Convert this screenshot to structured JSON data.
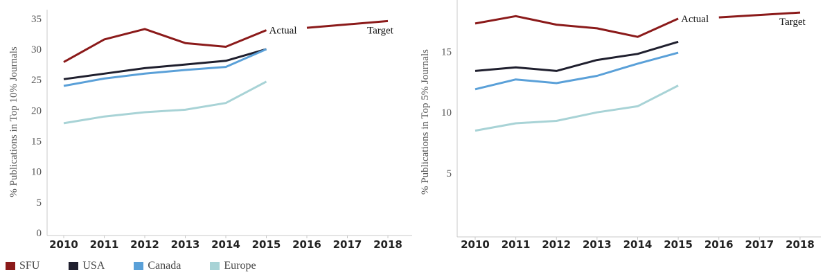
{
  "chart_data": [
    {
      "type": "line",
      "ylabel": "% Publications in Top 10% Journals",
      "ylim": [
        0,
        36
      ],
      "yticks": [
        0,
        5,
        10,
        15,
        20,
        25,
        30,
        35
      ],
      "categories": [
        "2010",
        "2011",
        "2012",
        "2013",
        "2014",
        "2015",
        "2016",
        "2017",
        "2018"
      ],
      "series": [
        {
          "name": "SFU",
          "color": "#8b1a1a",
          "values": [
            27.9,
            31.6,
            33.3,
            31,
            30.4,
            33.1,
            null,
            null,
            null
          ]
        },
        {
          "name": "USA",
          "color": "#1f1f2e",
          "values": [
            25.1,
            26,
            26.9,
            27.5,
            28.1,
            30,
            null,
            null,
            null
          ]
        },
        {
          "name": "Canada",
          "color": "#5aa0d8",
          "values": [
            24,
            25.2,
            26,
            26.6,
            27.1,
            30,
            null,
            null,
            null
          ]
        },
        {
          "name": "Europe",
          "color": "#a8d3d6",
          "values": [
            17.9,
            19,
            19.7,
            20.1,
            21.2,
            24.7,
            null,
            null,
            null
          ]
        }
      ],
      "target": {
        "color": "#8b1a1a",
        "points": [
          [
            "2016",
            33.5
          ],
          [
            "2018",
            34.6
          ]
        ]
      },
      "annotations": [
        {
          "text": "Actual",
          "x": "2015",
          "y": 33.1
        },
        {
          "text": "Target",
          "x": "2018",
          "y": 34.6
        }
      ],
      "grid": false
    },
    {
      "type": "line",
      "ylabel": "% Publications in Top 5% Journals",
      "ylim": [
        0,
        19
      ],
      "yticks": [
        5,
        10,
        15
      ],
      "categories": [
        "2010",
        "2011",
        "2012",
        "2013",
        "2014",
        "2015",
        "2016",
        "2017",
        "2018"
      ],
      "series": [
        {
          "name": "SFU",
          "color": "#8b1a1a",
          "values": [
            17.3,
            17.9,
            17.2,
            16.9,
            16.2,
            17.7,
            null,
            null,
            null
          ]
        },
        {
          "name": "USA",
          "color": "#1f1f2e",
          "values": [
            13.4,
            13.7,
            13.4,
            14.3,
            14.8,
            15.8,
            null,
            null,
            null
          ]
        },
        {
          "name": "Canada",
          "color": "#5aa0d8",
          "values": [
            11.9,
            12.7,
            12.4,
            13,
            14,
            14.9,
            null,
            null,
            null
          ]
        },
        {
          "name": "Europe",
          "color": "#a8d3d6",
          "values": [
            8.5,
            9.1,
            9.3,
            10,
            10.5,
            12.2,
            null,
            null,
            null
          ]
        }
      ],
      "target": {
        "color": "#8b1a1a",
        "points": [
          [
            "2016",
            17.8
          ],
          [
            "2018",
            18.2
          ]
        ]
      },
      "annotations": [
        {
          "text": "Actual",
          "x": "2015",
          "y": 17.7
        },
        {
          "text": "Target",
          "x": "2018",
          "y": 18.2
        }
      ],
      "grid": false
    }
  ],
  "legend": {
    "items": [
      {
        "label": "SFU",
        "color": "#8b1a1a"
      },
      {
        "label": "USA",
        "color": "#1f1f2e"
      },
      {
        "label": "Canada",
        "color": "#5aa0d8"
      },
      {
        "label": "Europe",
        "color": "#a8d3d6"
      }
    ]
  }
}
